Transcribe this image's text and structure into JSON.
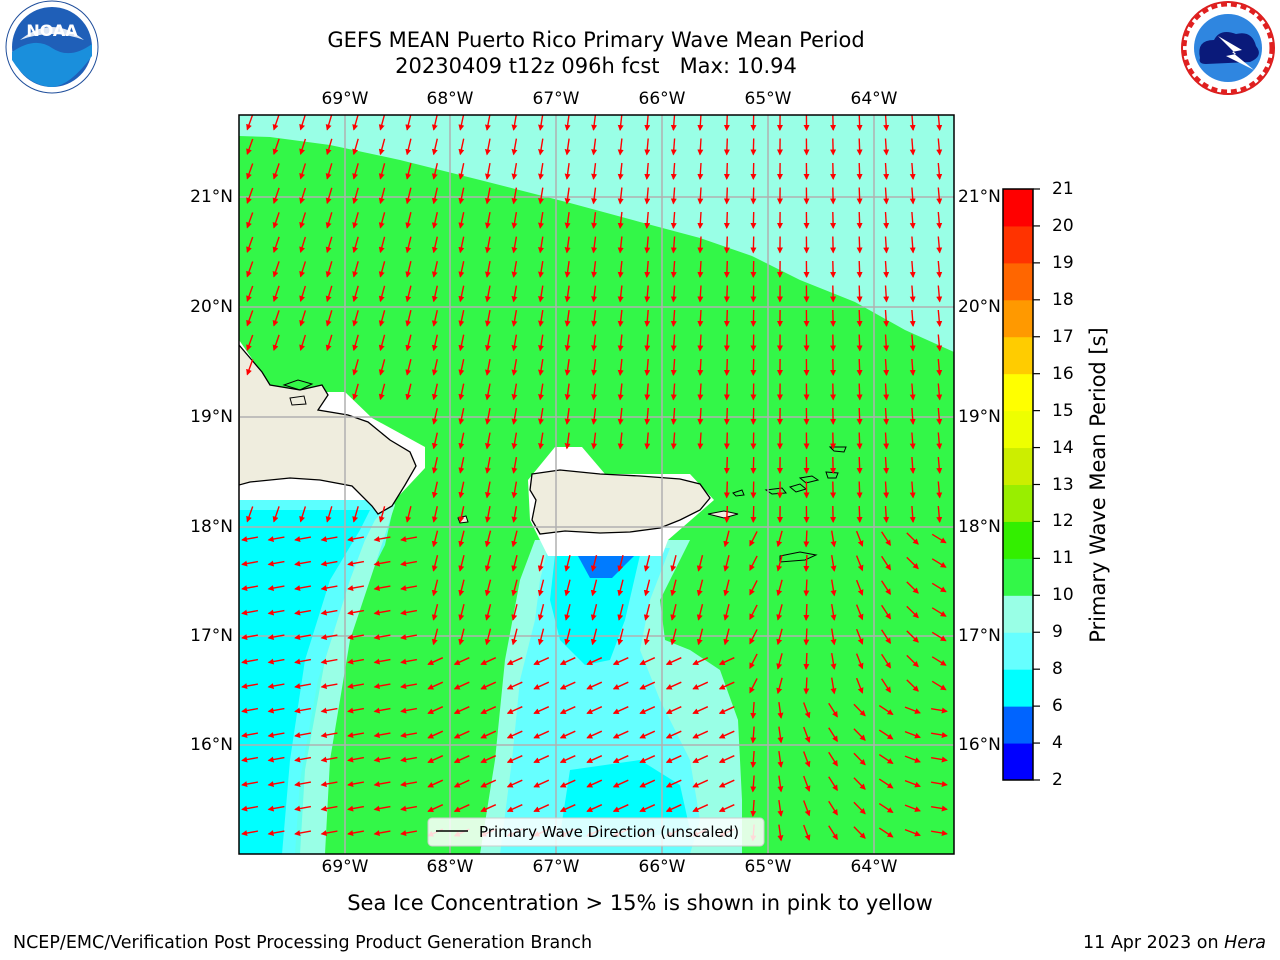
{
  "header": {
    "title_line1": "GEFS MEAN Puerto Rico Primary Wave Mean Period",
    "title_line2": "20230409 t12z 096h fcst   Max: 10.94"
  },
  "logos": {
    "left": {
      "icon": "noaa-logo-icon",
      "text": "NOAA",
      "ring_text": "NATIONAL OCEANIC AND ATMOSPHERIC ADMINISTRATION",
      "ring_text_bottom": "U.S. DEPARTMENT OF COMMERCE"
    },
    "right": {
      "icon": "nws-logo-icon",
      "ring_text": "NATIONAL WEATHER SERVICE"
    }
  },
  "map": {
    "lon_ticks": [
      "69°W",
      "68°W",
      "67°W",
      "66°W",
      "65°W",
      "64°W"
    ],
    "lat_ticks": [
      "21°N",
      "20°N",
      "19°N",
      "18°N",
      "17°N",
      "16°N"
    ],
    "legend_label": "Primary Wave Direction (unscaled)",
    "vector_color": "#ff0000",
    "land_color": "#efedde"
  },
  "colorbar": {
    "label": "Primary Wave Mean Period [s]",
    "ticks": [
      "2",
      "4",
      "6",
      "8",
      "9",
      "10",
      "11",
      "12",
      "13",
      "14",
      "15",
      "16",
      "17",
      "18",
      "19",
      "20",
      "21"
    ],
    "colors": [
      "#0000ff",
      "#0064ff",
      "#00ffff",
      "#66ffff",
      "#99ffe6",
      "#33f748",
      "#33ef00",
      "#99ee00",
      "#ccee00",
      "#eeff00",
      "#ffff00",
      "#ffcc00",
      "#ff9900",
      "#ff6600",
      "#ff3300",
      "#ff0000"
    ]
  },
  "chart_data": {
    "type": "heatmap",
    "title": "GEFS MEAN Puerto Rico Primary Wave Mean Period",
    "subtitle": "20230409 t12z 096h fcst   Max: 10.94",
    "x_ticks": [
      "69°W",
      "68°W",
      "67°W",
      "66°W",
      "65°W",
      "64°W"
    ],
    "y_ticks": [
      "21°N",
      "20°N",
      "19°N",
      "18°N",
      "17°N",
      "16°N"
    ],
    "colorbar_label": "Primary Wave Mean Period [s]",
    "colorbar_levels": [
      2,
      4,
      6,
      8,
      9,
      10,
      11,
      12,
      13,
      14,
      15,
      16,
      17,
      18,
      19,
      20,
      21
    ],
    "max_value": 10.94,
    "legend": "Primary Wave Direction (unscaled)"
  },
  "notes": {
    "sea_ice": "Sea Ice Concentration > 15% is shown in pink to yellow"
  },
  "footer": {
    "left": "NCEP/EMC/Verification Post Processing Product Generation Branch",
    "right_date": "11 Apr 2023 on ",
    "right_host": "Hera"
  }
}
